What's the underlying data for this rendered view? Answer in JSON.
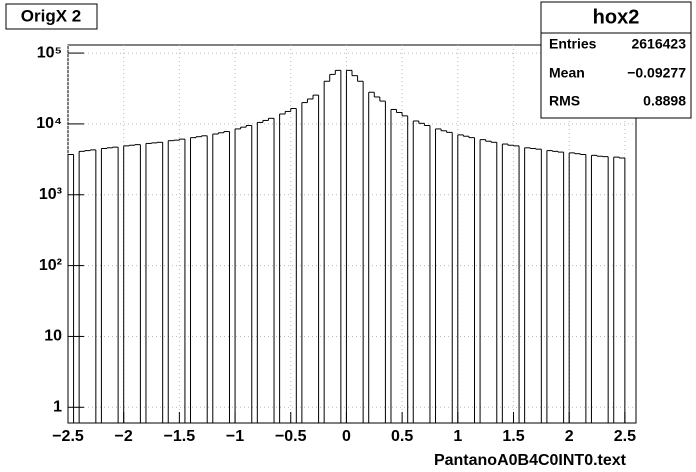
{
  "chart_data": {
    "type": "histogram",
    "title": "OrigX 2",
    "x_label": "PantanoA0B4C0INT0.text",
    "log_y": true,
    "grid": true,
    "color": "#000000",
    "stats": {
      "title": "hox2",
      "rows": [
        [
          "Entries",
          "2616423"
        ],
        [
          "Mean",
          "−0.09277"
        ],
        [
          "RMS",
          "0.8898"
        ]
      ]
    },
    "xlim": [
      -2.5,
      2.6
    ],
    "ylim": [
      0.6,
      130000
    ],
    "xticks": [
      {
        "value": -2.5,
        "label": "−2.5"
      },
      {
        "value": -2,
        "label": "−2"
      },
      {
        "value": -1.5,
        "label": "−1.5"
      },
      {
        "value": -1,
        "label": "−1"
      },
      {
        "value": -0.5,
        "label": "−0.5"
      },
      0,
      0.5,
      1,
      1.5,
      2,
      2.5
    ],
    "yticks": [
      1,
      10,
      {
        "value": 100,
        "label": "10²"
      },
      {
        "value": 1000,
        "label": "10³"
      },
      {
        "value": 10000,
        "label": "10⁴"
      },
      {
        "value": 100000,
        "label": "10⁵"
      }
    ],
    "bins": [
      -2.5,
      -2.45,
      -2.4,
      -2.35,
      -2.3,
      -2.25,
      -2.2,
      -2.15,
      -2.1,
      -2.05,
      -2.0,
      -1.95,
      -1.9,
      -1.85,
      -1.8,
      -1.75,
      -1.7,
      -1.65,
      -1.6,
      -1.55,
      -1.5,
      -1.45,
      -1.4,
      -1.35,
      -1.3,
      -1.25,
      -1.2,
      -1.15,
      -1.1,
      -1.05,
      -1.0,
      -0.95,
      -0.9,
      -0.85,
      -0.8,
      -0.75,
      -0.7,
      -0.65,
      -0.6,
      -0.55,
      -0.5,
      -0.45,
      -0.4,
      -0.35,
      -0.3,
      -0.25,
      -0.2,
      -0.15,
      -0.1,
      -0.05,
      0,
      0.05,
      0.1,
      0.15,
      0.2,
      0.25,
      0.3,
      0.35,
      0.4,
      0.45,
      0.5,
      0.55,
      0.6,
      0.65,
      0.7,
      0.75,
      0.8,
      0.85,
      0.9,
      0.95,
      1.0,
      1.05,
      1.1,
      1.15,
      1.2,
      1.25,
      1.3,
      1.35,
      1.4,
      1.45,
      1.5,
      1.55,
      1.6,
      1.65,
      1.7,
      1.75,
      1.8,
      1.85,
      1.9,
      1.95,
      2.0,
      2.05,
      2.1,
      2.15,
      2.2,
      2.25,
      2.3,
      2.35,
      2.4,
      2.45,
      2.5
    ],
    "values": [
      3700,
      0,
      4100,
      4200,
      4300,
      0,
      4500,
      4600,
      4700,
      0,
      4900,
      5000,
      5100,
      0,
      5300,
      5400,
      5500,
      0,
      5800,
      5900,
      6100,
      0,
      6400,
      6600,
      6800,
      0,
      7200,
      7500,
      7800,
      0,
      8500,
      9000,
      9500,
      0,
      10500,
      11200,
      12000,
      0,
      13800,
      15000,
      16500,
      0,
      20000,
      22500,
      25500,
      0,
      40000,
      50000,
      57000,
      0,
      57000,
      48000,
      40000,
      0,
      28000,
      24000,
      21000,
      0,
      16000,
      14500,
      13000,
      0,
      11000,
      10200,
      9500,
      0,
      8500,
      8000,
      7600,
      0,
      7000,
      6700,
      6400,
      0,
      6000,
      5700,
      5500,
      0,
      5200,
      5000,
      4900,
      0,
      4600,
      4500,
      4400,
      0,
      4200,
      4100,
      4000,
      0,
      3900,
      3800,
      3700,
      0,
      3600,
      3500,
      3450,
      0,
      3400,
      3300
    ]
  }
}
